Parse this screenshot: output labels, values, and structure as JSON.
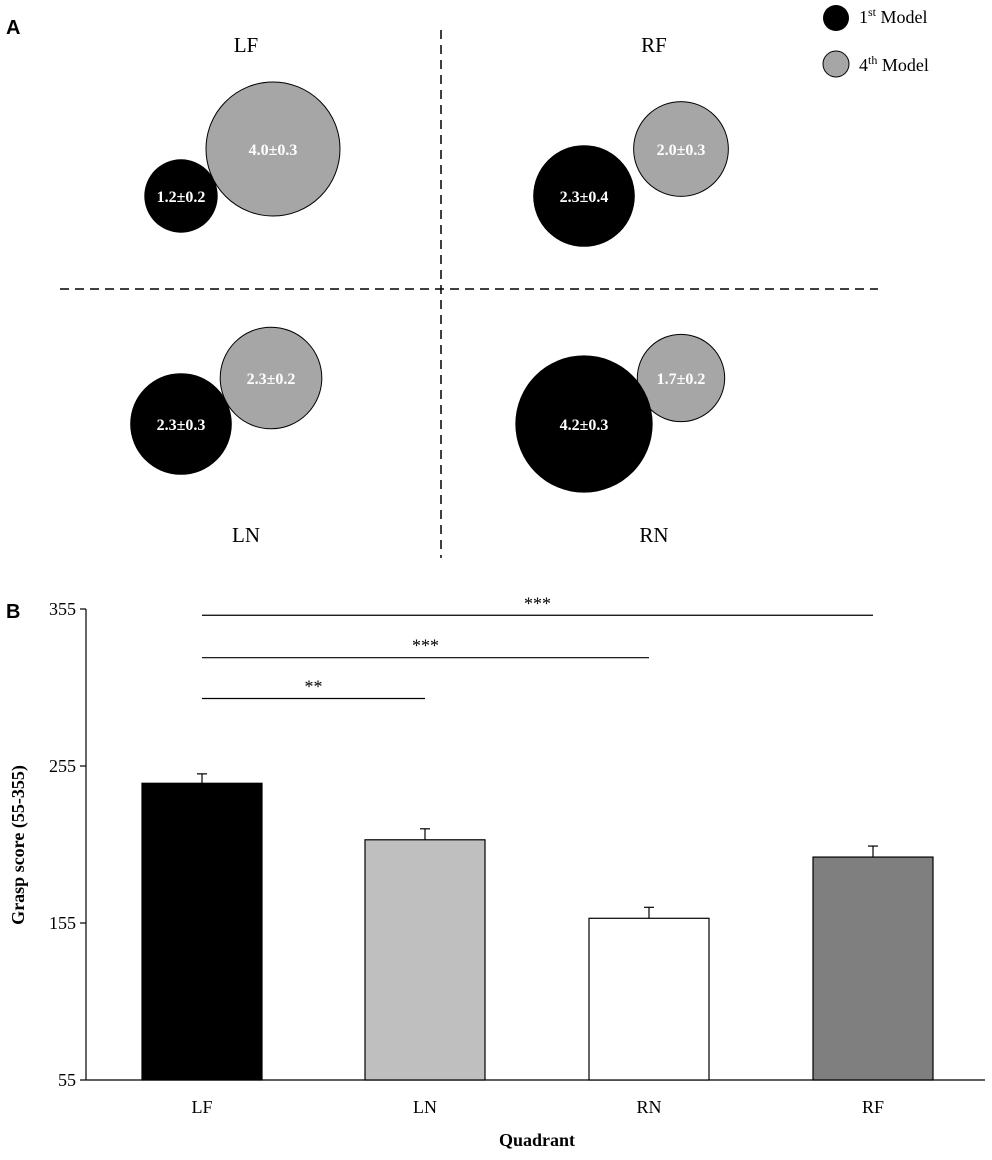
{
  "chart_data": [
    {
      "panel": "A",
      "type": "bubble",
      "legend": [
        {
          "name_base": "1",
          "name_sup": "st",
          "name_rest": " Model",
          "color": "#000000"
        },
        {
          "name_base": "4",
          "name_sup": "th",
          "name_rest": " Model",
          "color": "#a6a6a6"
        }
      ],
      "quadrants": [
        {
          "label": "LF",
          "first": {
            "value": 1.2,
            "label": "1.2±0.2"
          },
          "fourth": {
            "value": 4.0,
            "label": "4.0±0.3"
          }
        },
        {
          "label": "RF",
          "first": {
            "value": 2.3,
            "label": "2.3±0.4"
          },
          "fourth": {
            "value": 2.0,
            "label": "2.0±0.3"
          }
        },
        {
          "label": "LN",
          "first": {
            "value": 2.3,
            "label": "2.3±0.3"
          },
          "fourth": {
            "value": 2.3,
            "label": "2.3±0.2"
          }
        },
        {
          "label": "RN",
          "first": {
            "value": 4.2,
            "label": "4.2±0.3"
          },
          "fourth": {
            "value": 1.7,
            "label": "1.7±0.2"
          }
        }
      ]
    },
    {
      "panel": "B",
      "type": "bar",
      "xlabel": "Quadrant",
      "ylabel": "Grasp score (55-355)",
      "ylim": [
        55,
        355
      ],
      "yticks": [
        55,
        155,
        255,
        355
      ],
      "categories": [
        "LF",
        "LN",
        "RN",
        "RF"
      ],
      "values": [
        244,
        208,
        158,
        197
      ],
      "errors": [
        6,
        7,
        7,
        7
      ],
      "colors": [
        "#000000",
        "#bfbfbf",
        "#ffffff",
        "#7f7f7f"
      ],
      "significance": [
        {
          "from": "LF",
          "to": "LN",
          "label": "**",
          "y": 298
        },
        {
          "from": "LF",
          "to": "RN",
          "label": "***",
          "y": 324
        },
        {
          "from": "LF",
          "to": "RF",
          "label": "***",
          "y": 351
        }
      ]
    }
  ]
}
